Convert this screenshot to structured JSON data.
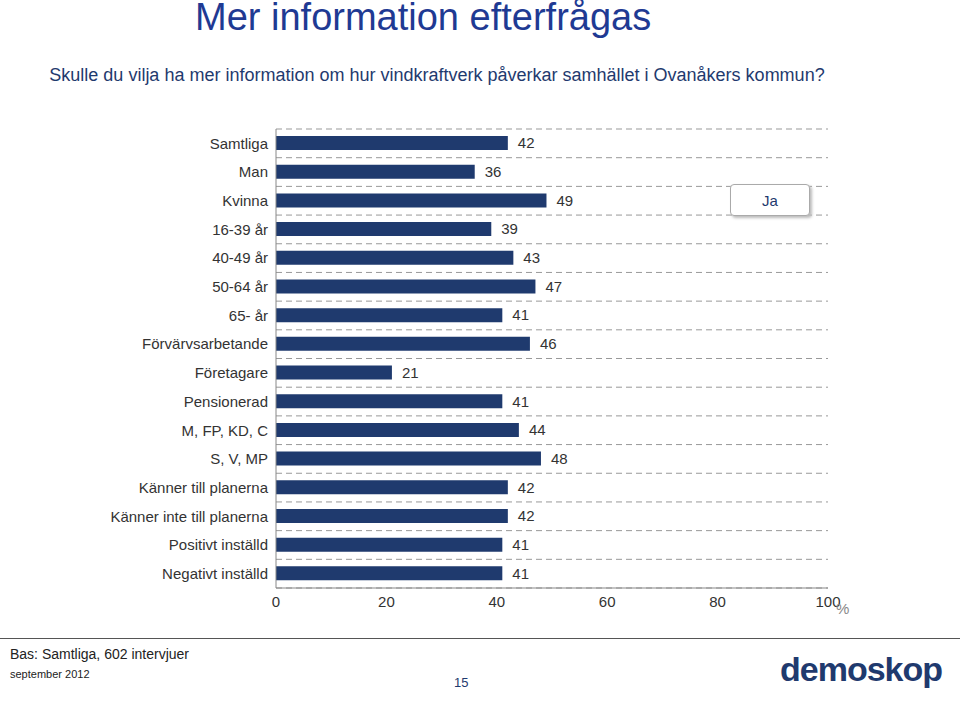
{
  "chart_data": {
    "type": "bar",
    "orientation": "horizontal",
    "title": "Mer information efterfrågas",
    "subtitle": "Skulle du vilja ha mer information om hur vindkraftverk påverkar samhället i Ovanåkers kommun?",
    "xlabel": "%",
    "categories": [
      "Samtliga",
      "Man",
      "Kvinna",
      "16-39 år",
      "40-49 år",
      "50-64 år",
      "65- år",
      "Förvärvsarbetande",
      "Företagare",
      "Pensionerad",
      "M, FP, KD, C",
      "S, V, MP",
      "Känner till planerna",
      "Känner inte till planerna",
      "Positivt inställd",
      "Negativt inställd"
    ],
    "series": [
      {
        "name": "Ja",
        "color": "#1f3a6e",
        "values": [
          42,
          36,
          49,
          39,
          43,
          47,
          41,
          46,
          21,
          41,
          44,
          48,
          42,
          42,
          41,
          41
        ]
      }
    ],
    "xlim": [
      0,
      100
    ],
    "xticks": [
      0,
      20,
      40,
      60,
      80,
      100
    ],
    "grid": true,
    "data_labels": true,
    "legend": "upper right",
    "annotations": [
      "Bas: Samtliga, 602 intervjuer",
      "september 2012",
      "15",
      "demoskop"
    ]
  }
}
